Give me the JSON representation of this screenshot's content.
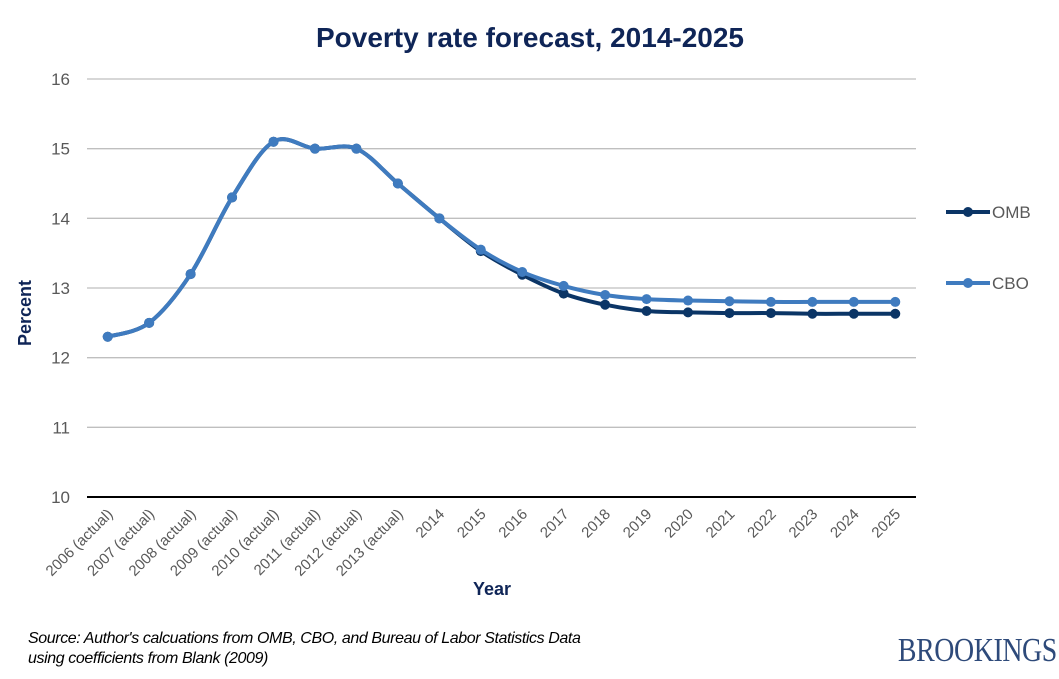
{
  "chart_data": {
    "type": "line",
    "title": "Poverty rate forecast, 2014-2025",
    "xlabel": "Year",
    "ylabel": "Percent",
    "ylim": [
      10,
      16
    ],
    "yticks": [
      10,
      11,
      12,
      13,
      14,
      15,
      16
    ],
    "grid": true,
    "legend_position": "right",
    "categories": [
      "2006 (actual)",
      "2007 (actual)",
      "2008 (actual)",
      "2009 (actual)",
      "2010 (actual)",
      "2011 (actual)",
      "2012 (actual)",
      "2013 (actual)",
      "2014",
      "2015",
      "2016",
      "2017",
      "2018",
      "2019",
      "2020",
      "2021",
      "2022",
      "2023",
      "2024",
      "2025"
    ],
    "series": [
      {
        "name": "OMB",
        "color": "#0b3566",
        "values": [
          12.3,
          12.5,
          13.2,
          14.3,
          15.1,
          15.0,
          15.0,
          14.5,
          14.0,
          13.53,
          13.19,
          12.92,
          12.76,
          12.67,
          12.65,
          12.64,
          12.64,
          12.63,
          12.63,
          12.63
        ]
      },
      {
        "name": "CBO",
        "color": "#3f7bbf",
        "values": [
          12.3,
          12.5,
          13.2,
          14.3,
          15.1,
          15.0,
          15.0,
          14.5,
          14.0,
          13.55,
          13.23,
          13.03,
          12.9,
          12.84,
          12.82,
          12.81,
          12.8,
          12.8,
          12.8,
          12.8
        ]
      }
    ]
  },
  "footer": {
    "source_line1": "Source: Author's calcuations from OMB, CBO, and Bureau of Labor Statistics Data",
    "source_line2": "using coefficients from Blank (2009)",
    "logo": "BROOKINGS"
  }
}
